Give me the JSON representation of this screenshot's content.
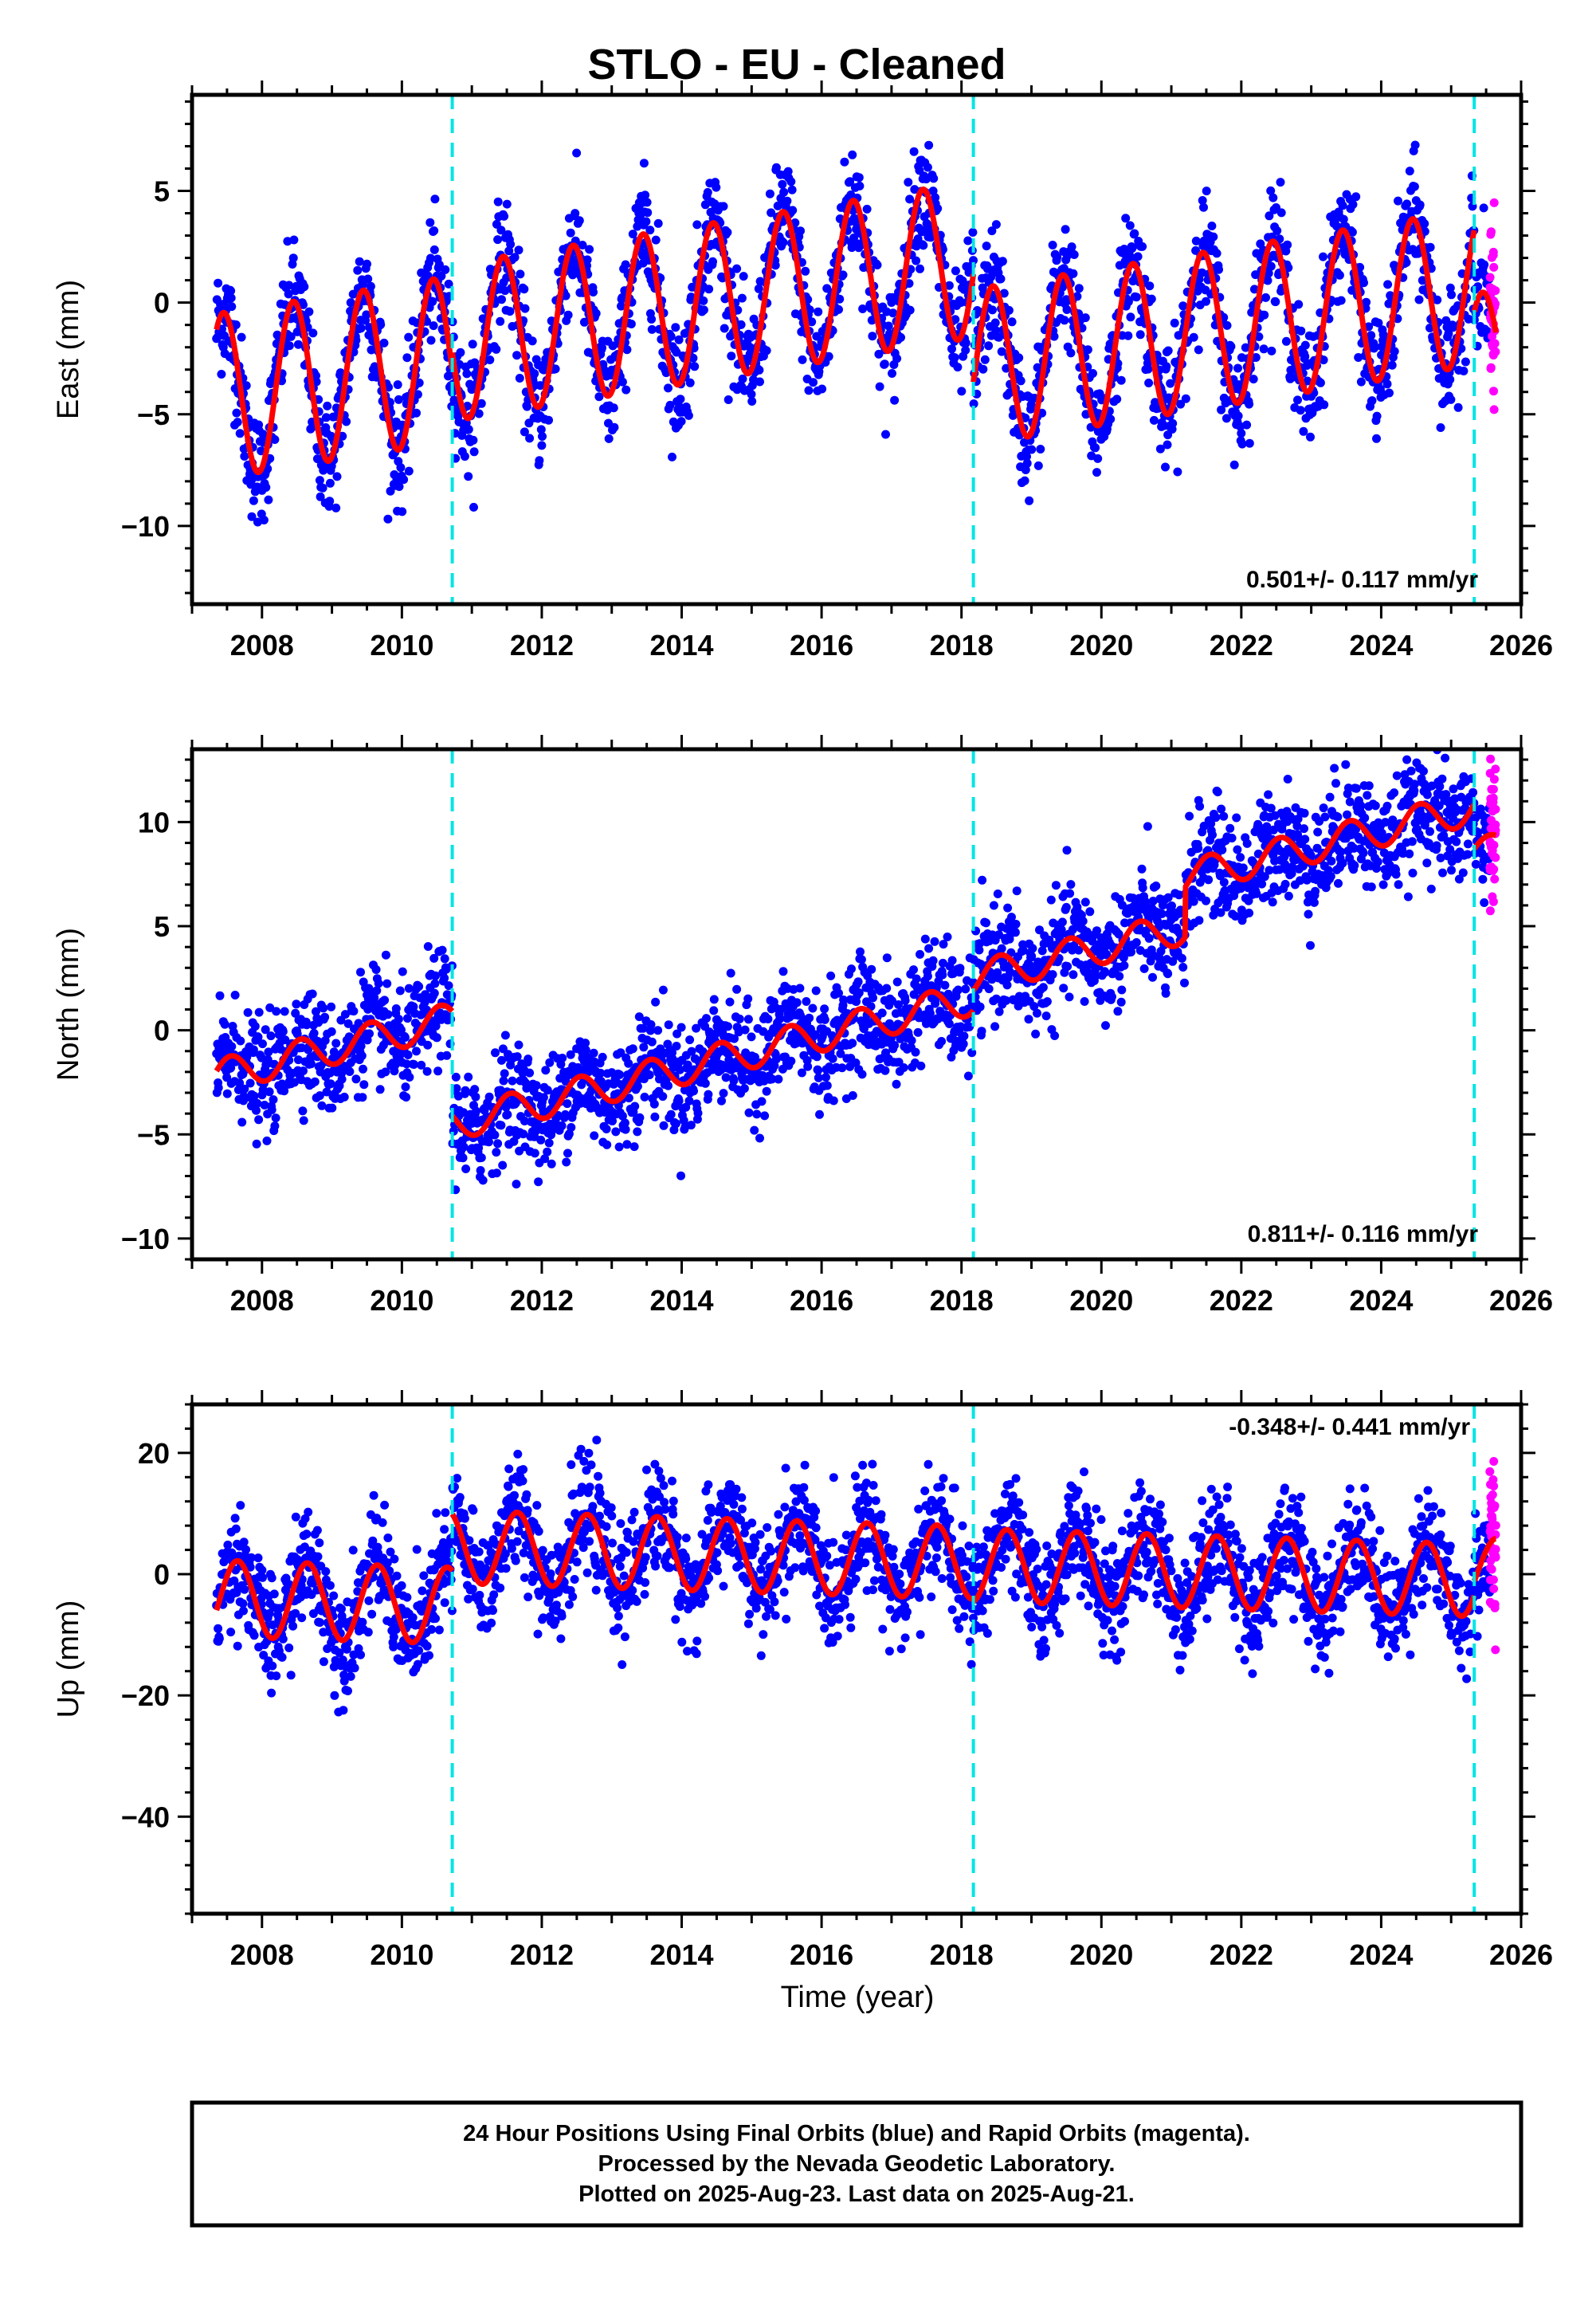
{
  "title": "STLO  - EU - Cleaned",
  "xlabel": "Time (year)",
  "footer": {
    "line1": "24 Hour Positions Using Final Orbits (blue) and Rapid Orbits (magenta).",
    "line2": "Processed by the Nevada Geodetic Laboratory.",
    "line3": "Plotted on 2025-Aug-23. Last data on 2025-Aug-21."
  },
  "colors": {
    "final": "#0000ff",
    "rapid": "#ff00ff",
    "model": "#ff0000",
    "steps": "#00e5e5"
  },
  "chart_data": [
    {
      "type": "scatter",
      "name": "east",
      "ylabel": "East (mm)",
      "rate_label": "0.501+/- 0.117 mm/yr",
      "xlim": [
        2007.0,
        2026.0
      ],
      "ylim": [
        -13.5,
        9.3
      ],
      "xticks": [
        2008,
        2010,
        2012,
        2014,
        2016,
        2018,
        2020,
        2022,
        2024,
        2026
      ],
      "xtick_labels": [
        "2008",
        "2010",
        "2012",
        "2014",
        "2016",
        "2018",
        "2020",
        "2022",
        "2024",
        "2026"
      ],
      "yticks": [
        -10,
        -5,
        0,
        5
      ],
      "ytick_labels": [
        "−10",
        "−5",
        "0",
        "5"
      ],
      "steps": [
        2010.72,
        2018.17,
        2025.33
      ],
      "data_start": 2007.35,
      "data_end": 2025.55,
      "rapid_start": 2025.55,
      "rapid_end": 2025.64,
      "model": {
        "rate": 0.501,
        "segments": [
          {
            "start": 2007.35,
            "end": 2010.72,
            "offset": -4.2,
            "amplitude": 3.7,
            "peak_phase": 0.45
          },
          {
            "start": 2010.72,
            "end": 2018.17,
            "offset": -1.8,
            "amplitude": 3.5,
            "peak_phase": 0.45
          },
          {
            "start": 2018.17,
            "end": 2025.33,
            "offset": -2.9,
            "amplitude": 3.5,
            "peak_phase": 0.45
          },
          {
            "start": 2025.33,
            "end": 2025.64,
            "offset": -2.6,
            "amplitude": 3.0,
            "peak_phase": 0.45
          }
        ]
      },
      "scatter_noise": 1.3
    },
    {
      "type": "scatter",
      "name": "north",
      "ylabel": "North (mm)",
      "rate_label": "0.811+/- 0.116 mm/yr",
      "xlim": [
        2007.0,
        2026.0
      ],
      "ylim": [
        -11.0,
        13.5
      ],
      "xticks": [
        2008,
        2010,
        2012,
        2014,
        2016,
        2018,
        2020,
        2022,
        2024,
        2026
      ],
      "xtick_labels": [
        "2008",
        "2010",
        "2012",
        "2014",
        "2016",
        "2018",
        "2020",
        "2022",
        "2024",
        "2026"
      ],
      "yticks": [
        -10,
        -5,
        0,
        5,
        10
      ],
      "ytick_labels": [
        "−10",
        "−5",
        "0",
        "5",
        "10"
      ],
      "steps": [
        2010.72,
        2018.17,
        2025.33
      ],
      "data_start": 2007.35,
      "data_end": 2025.55,
      "rapid_start": 2025.55,
      "rapid_end": 2025.64,
      "model": {
        "rate": 0.811,
        "segments": [
          {
            "start": 2007.35,
            "end": 2010.72,
            "offset": -2.2,
            "amplitude": 0.8,
            "peak_phase": 0.55
          },
          {
            "start": 2010.72,
            "end": 2018.17,
            "offset": -4.5,
            "amplitude": 0.8,
            "peak_phase": 0.55
          },
          {
            "start": 2018.17,
            "end": 2025.33,
            "offset": 2.5,
            "amplitude": 0.8,
            "peak_phase": 0.55
          },
          {
            "start": 2025.33,
            "end": 2025.64,
            "offset": 8.6,
            "amplitude": 0.6,
            "peak_phase": 0.55
          }
        ]
      },
      "scatter_noise": 1.3,
      "jumps": [
        {
          "start": 2021.2,
          "value": 2.4
        }
      ]
    },
    {
      "type": "scatter",
      "name": "up",
      "ylabel": "Up (mm)",
      "rate_label": "-0.348+/- 0.441 mm/yr",
      "xlim": [
        2007.0,
        2026.0
      ],
      "ylim": [
        -56.0,
        28.0
      ],
      "xticks": [
        2008,
        2010,
        2012,
        2014,
        2016,
        2018,
        2020,
        2022,
        2024,
        2026
      ],
      "xtick_labels": [
        "2008",
        "2010",
        "2012",
        "2014",
        "2016",
        "2018",
        "2020",
        "2022",
        "2024",
        "2026"
      ],
      "yticks": [
        -40,
        -20,
        0,
        20
      ],
      "ytick_labels": [
        "−40",
        "−20",
        "0",
        "20"
      ],
      "steps": [
        2010.72,
        2018.17,
        2025.33
      ],
      "data_start": 2007.35,
      "data_end": 2025.55,
      "rapid_start": 2025.55,
      "rapid_end": 2025.64,
      "model": {
        "rate": -0.348,
        "segments": [
          {
            "start": 2007.35,
            "end": 2010.72,
            "offset": -4.0,
            "amplitude": 6.3,
            "peak_phase": 0.65
          },
          {
            "start": 2010.72,
            "end": 2018.17,
            "offset": 4.5,
            "amplitude": 6.0,
            "peak_phase": 0.65
          },
          {
            "start": 2018.17,
            "end": 2025.33,
            "offset": 1.5,
            "amplitude": 6.0,
            "peak_phase": 0.65
          },
          {
            "start": 2025.33,
            "end": 2025.64,
            "offset": 1.0,
            "amplitude": 5.0,
            "peak_phase": 0.65
          }
        ]
      },
      "scatter_noise": 4.5
    }
  ]
}
